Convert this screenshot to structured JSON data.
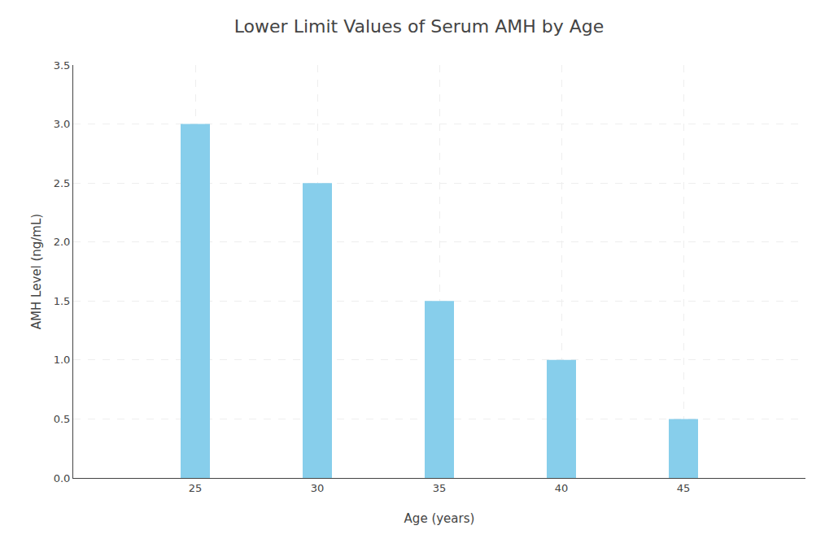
{
  "chart_data": {
    "type": "bar",
    "title": "Lower Limit Values of Serum AMH by Age",
    "xlabel": "Age (years)",
    "ylabel": "AMH Level (ng/mL)",
    "x": [
      25,
      30,
      35,
      40,
      45
    ],
    "values": [
      3.0,
      2.5,
      1.5,
      1.0,
      0.5
    ],
    "color": "#87CEEB",
    "xlim": [
      20,
      50
    ],
    "xticks": [
      25,
      30,
      35,
      40,
      45
    ],
    "ylim": [
      0,
      3.5
    ],
    "yticks": [
      {
        "value": 0,
        "label": "0.0"
      },
      0.5,
      {
        "value": 1,
        "label": "1.0"
      },
      1.5,
      {
        "value": 2,
        "label": "2.0"
      },
      2.5,
      {
        "value": 3,
        "label": "3.0"
      },
      3.5
    ],
    "grid": true
  }
}
